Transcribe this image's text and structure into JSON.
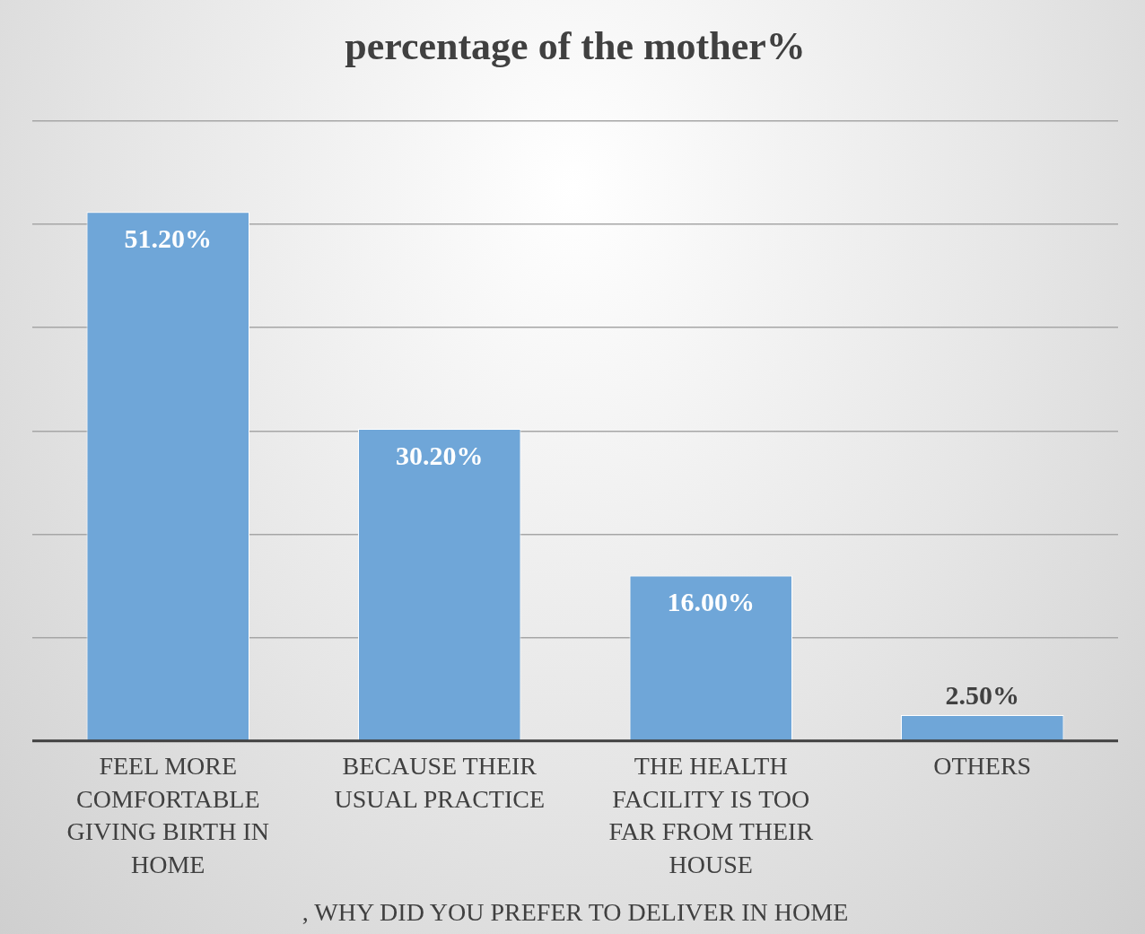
{
  "chart_data": {
    "type": "bar",
    "title": "percentage of the mother%",
    "xlabel": ", WHY DID YOU PREFER TO DELIVER IN HOME",
    "categories": [
      "FEEL MORE COMFORTABLE GIVING BIRTH IN HOME",
      "BECAUSE THEIR USUAL PRACTICE",
      "THE HEALTH FACILITY IS TOO FAR FROM THEIR HOUSE",
      "OTHERS"
    ],
    "values": [
      51.2,
      30.2,
      16.0,
      2.5
    ],
    "value_labels": [
      "51.20%",
      "30.20%",
      "16.00%",
      "2.50%"
    ],
    "color": "#6fa6d8",
    "ylim": [
      0,
      60
    ],
    "yticks": [
      {
        "value": 0,
        "label": null
      },
      {
        "value": 10,
        "label": null
      },
      {
        "value": 20,
        "label": null
      },
      {
        "value": 30,
        "label": null
      },
      {
        "value": 40,
        "label": null
      },
      {
        "value": 50,
        "label": null
      },
      {
        "value": 60,
        "label": null
      }
    ],
    "grid": "y",
    "tick_labels": "x",
    "legend": false
  }
}
